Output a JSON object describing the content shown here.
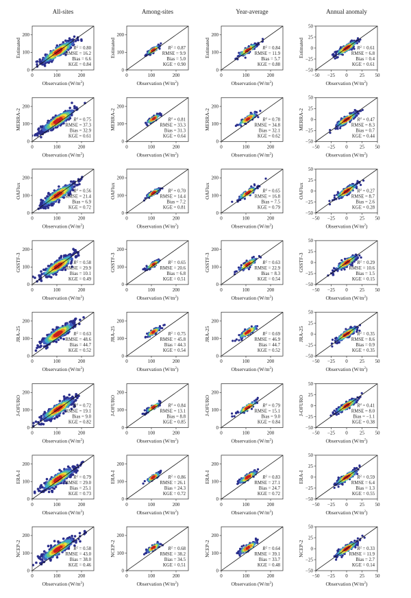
{
  "chart_data": {
    "type": "scatter",
    "layout": "grid of 8 rows by 4 columns, density-colored scatter plots with 1:1 reference line",
    "columns": [
      {
        "title": "All-sites",
        "xlim": [
          0,
          250
        ],
        "ylim": [
          0,
          250
        ],
        "xticks": [
          "0",
          "100",
          "200"
        ],
        "yticks": [
          "0",
          "100",
          "200"
        ],
        "center": [
          105,
          100
        ],
        "spread": 34
      },
      {
        "title": "Among-sites",
        "xlim": [
          0,
          250
        ],
        "ylim": [
          0,
          250
        ],
        "xticks": [
          "0",
          "100",
          "200"
        ],
        "yticks": [
          "0",
          "100",
          "200"
        ],
        "center": [
          108,
          110
        ],
        "spread": 14
      },
      {
        "title": "Year-average",
        "xlim": [
          0,
          250
        ],
        "ylim": [
          0,
          250
        ],
        "xticks": [
          "0",
          "100",
          "200"
        ],
        "yticks": [
          "0",
          "100",
          "200"
        ],
        "center": [
          108,
          110
        ],
        "spread": 20
      },
      {
        "title": "Annual anomaly",
        "xlim": [
          -50,
          50
        ],
        "ylim": [
          -50,
          50
        ],
        "xticks": [
          "−50",
          "−25",
          "0",
          "25",
          "50"
        ],
        "yticks": [
          "−50",
          "−25",
          "0",
          "25",
          "50"
        ],
        "center": [
          0,
          0
        ],
        "spread": 9
      }
    ],
    "xlabel": "Observation (W/m²)",
    "xlabel_main": "Observation (W/m",
    "xlabel_sup": "2",
    "xlabel_end": ")",
    "r2_label": "R",
    "r2_sup": "2",
    "colorscale": [
      "#2a2e8c",
      "#3f5fbf",
      "#3fa9c9",
      "#6cc67c",
      "#e8e23c",
      "#f08a24",
      "#c81d1d"
    ],
    "rows": [
      {
        "name": "Estimated",
        "stats": [
          {
            "r2": "0.80",
            "rmse": "16.2",
            "bias": "6.6",
            "kge": "0.84"
          },
          {
            "r2": "0.87",
            "rmse": "9.9",
            "bias": "5.0",
            "kge": "0.90"
          },
          {
            "r2": "0.84",
            "rmse": "11.9",
            "bias": "5.7",
            "kge": "0.88"
          },
          {
            "r2": "0.61",
            "rmse": "6.8",
            "bias": "0.4",
            "kge": "0.61"
          }
        ]
      },
      {
        "name": "MERRA-2",
        "stats": [
          {
            "r2": "0.75",
            "rmse": "37.3",
            "bias": "32.9",
            "kge": "0.61"
          },
          {
            "r2": "0.81",
            "rmse": "33.3",
            "bias": "31.3",
            "kge": "0.64"
          },
          {
            "r2": "0.78",
            "rmse": "34.8",
            "bias": "32.1",
            "kge": "0.62"
          },
          {
            "r2": "0.47",
            "rmse": "8.3",
            "bias": "0.7",
            "kge": "0.44"
          }
        ]
      },
      {
        "name": "OAFlux",
        "stats": [
          {
            "r2": "0.56",
            "rmse": "21.4",
            "bias": "6.9",
            "kge": "0.72"
          },
          {
            "r2": "0.70",
            "rmse": "14.4",
            "bias": "7.2",
            "kge": "0.81"
          },
          {
            "r2": "0.65",
            "rmse": "16.8",
            "bias": "7.5",
            "kge": "0.79"
          },
          {
            "r2": "0.27",
            "rmse": "8.7",
            "bias": "2.6",
            "kge": "0.28"
          }
        ]
      },
      {
        "name": "GSSTF-3",
        "stats": [
          {
            "r2": "0.58",
            "rmse": "29.9",
            "bias": "10.1",
            "kge": "0.49"
          },
          {
            "r2": "0.65",
            "rmse": "20.6",
            "bias": "6.8",
            "kge": "0.51"
          },
          {
            "r2": "0.63",
            "rmse": "22.9",
            "bias": "8.3",
            "kge": "0.54"
          },
          {
            "r2": "0.29",
            "rmse": "10.6",
            "bias": "1.5",
            "kge": "0.15"
          }
        ]
      },
      {
        "name": "JRA-25",
        "stats": [
          {
            "r2": "0.63",
            "rmse": "48.6",
            "bias": "44.7",
            "kge": "0.52"
          },
          {
            "r2": "0.75",
            "rmse": "45.8",
            "bias": "44.3",
            "kge": "0.54"
          },
          {
            "r2": "0.69",
            "rmse": "46.9",
            "bias": "44.7",
            "kge": "0.52"
          },
          {
            "r2": "0.35",
            "rmse": "8.6",
            "bias": "0.9",
            "kge": "0.35"
          }
        ]
      },
      {
        "name": "J-OFURO",
        "stats": [
          {
            "r2": "0.72",
            "rmse": "19.1",
            "bias": "9.0",
            "kge": "0.82"
          },
          {
            "r2": "0.84",
            "rmse": "13.1",
            "bias": "8.8",
            "kge": "0.85"
          },
          {
            "r2": "0.79",
            "rmse": "15.1",
            "bias": "9.0",
            "kge": "0.84"
          },
          {
            "r2": "0.41",
            "rmse": "8.0",
            "bias": "−1.1",
            "kge": "0.38"
          }
        ]
      },
      {
        "name": "ERA-I",
        "stats": [
          {
            "r2": "0.79",
            "rmse": "29.0",
            "bias": "25.1",
            "kge": "0.73"
          },
          {
            "r2": "0.86",
            "rmse": "26.1",
            "bias": "24.3",
            "kge": "0.72"
          },
          {
            "r2": "0.83",
            "rmse": "27.1",
            "bias": "24.7",
            "kge": "0.72"
          },
          {
            "r2": "0.59",
            "rmse": "6.4",
            "bias": "1.3",
            "kge": "0.55"
          }
        ]
      },
      {
        "name": "NCEP-2",
        "stats": [
          {
            "r2": "0.58",
            "rmse": "43.0",
            "bias": "38.0",
            "kge": "0.46"
          },
          {
            "r2": "0.68",
            "rmse": "38.2",
            "bias": "34.5",
            "kge": "0.51"
          },
          {
            "r2": "0.64",
            "rmse": "39.1",
            "bias": "33.7",
            "kge": "0.48"
          },
          {
            "r2": "0.33",
            "rmse": "11.9",
            "bias": "2.7",
            "kge": "0.14"
          }
        ]
      }
    ]
  }
}
